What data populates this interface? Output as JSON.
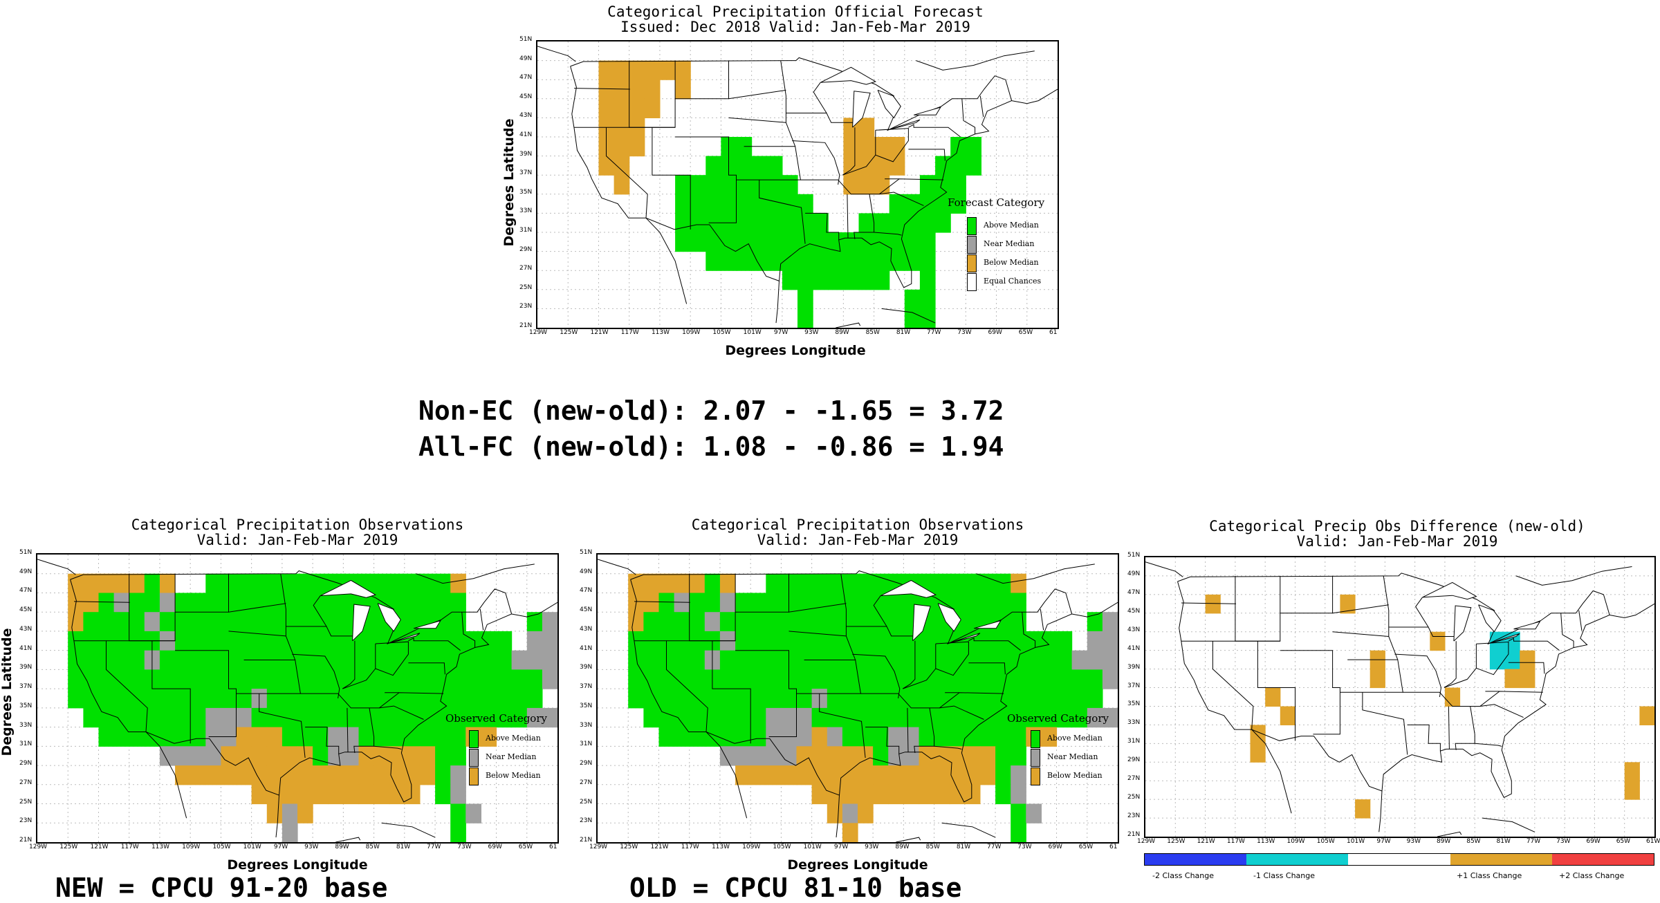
{
  "colors": {
    "above_median": "#00e000",
    "near_median": "#a0a0a0",
    "below_median": "#e0a42c",
    "equal_chances": "#ffffff",
    "minus2": "#2a3cf0",
    "minus1": "#10cfd0",
    "zero": "#ffffff",
    "plus1": "#e0a42c",
    "plus2": "#f04040"
  },
  "axes": {
    "lat_ticks": [
      "51N",
      "49N",
      "47N",
      "45N",
      "43N",
      "41N",
      "39N",
      "37N",
      "35N",
      "33N",
      "31N",
      "29N",
      "27N",
      "25N",
      "23N",
      "21N"
    ],
    "lon_ticks": [
      "129W",
      "125W",
      "121W",
      "117W",
      "113W",
      "109W",
      "105W",
      "101W",
      "97W",
      "93W",
      "89W",
      "85W",
      "81W",
      "77W",
      "73W",
      "69W",
      "65W",
      "61"
    ],
    "diff_lon_ticks": [
      "129W",
      "125W",
      "121W",
      "117W",
      "113W",
      "109W",
      "105W",
      "101W",
      "97W",
      "93W",
      "89W",
      "85W",
      "81W",
      "77W",
      "73W",
      "69W",
      "65W",
      "61W"
    ],
    "ylabel": "Degrees Latitude",
    "xlabel": "Degrees Longitude"
  },
  "forecast": {
    "title1": "Categorical Precipitation Official Forecast",
    "title2": "Issued: Dec 2018 Valid: Jan-Feb-Mar 2019",
    "legend_title": "Forecast Category",
    "legend": [
      "Above Median",
      "Near Median",
      "Below Median",
      "Equal Chances"
    ]
  },
  "stats": {
    "line1": "Non-EC (new-old): 2.07 - -1.65 = 3.72",
    "line2": "All-FC (new-old): 1.08 - -0.86 = 1.94"
  },
  "obs_new": {
    "title1": "Categorical Precipitation Observations",
    "title2": "Valid: Jan-Feb-Mar 2019",
    "legend_title": "Observed Category",
    "legend": [
      "Above Median",
      "Near Median",
      "Below Median"
    ],
    "caption": "NEW = CPCU 91-20 base"
  },
  "obs_old": {
    "title1": "Categorical Precipitation Observations",
    "title2": "Valid: Jan-Feb-Mar 2019",
    "legend_title": "Observed Category",
    "legend": [
      "Above Median",
      "Near Median",
      "Below Median"
    ],
    "caption": "OLD = CPCU 81-10 base"
  },
  "diff": {
    "title1": "Categorical Precip Obs Difference (new-old)",
    "title2": "Valid: Jan-Feb-Mar 2019",
    "colorbar_labels": [
      "-2 Class Change",
      "-1 Class Change",
      "+1 Class Change",
      "+2 Class Change"
    ]
  }
}
